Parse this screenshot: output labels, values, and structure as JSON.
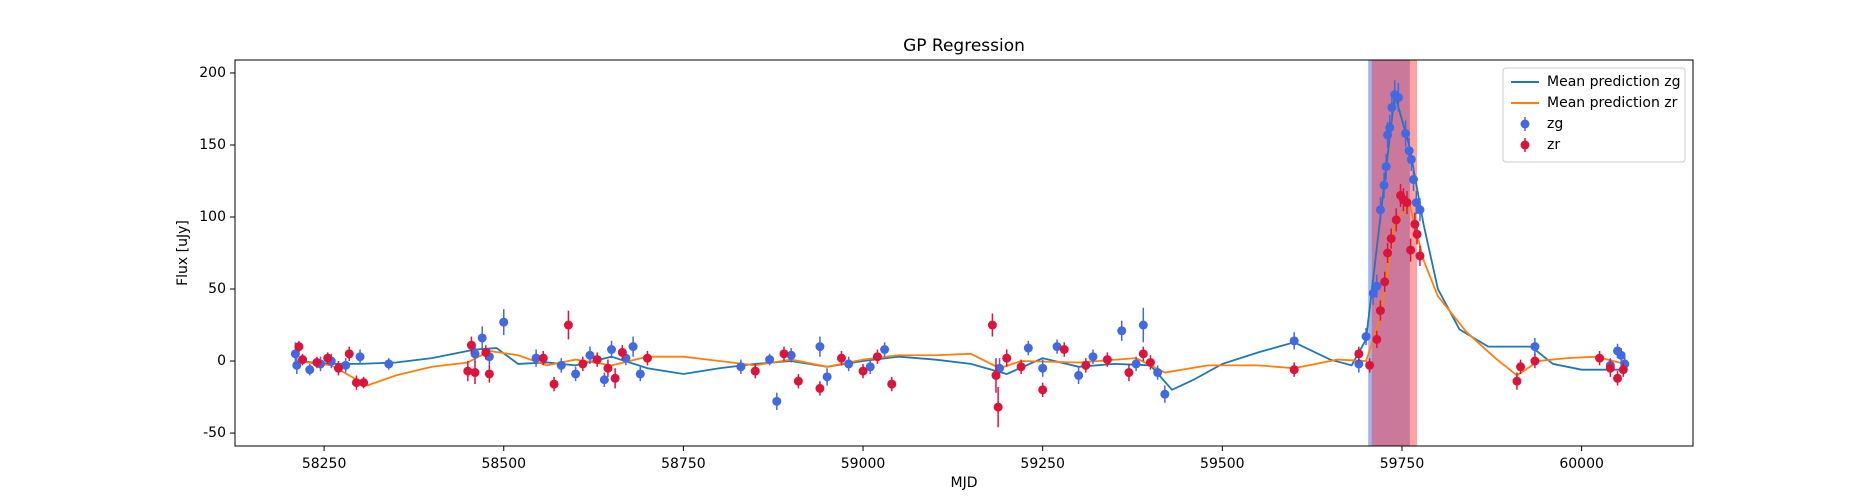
{
  "chart_data": {
    "type": "errorbar",
    "title": "GP Regression",
    "x_label": "MJD",
    "y_label": "Flux [uJy]",
    "xlim": [
      58126,
      60155
    ],
    "ylim": [
      -59,
      209
    ],
    "xticks": [
      58250,
      58500,
      58750,
      59000,
      59250,
      59500,
      59750,
      60000
    ],
    "yticks": [
      -50,
      0,
      50,
      100,
      150,
      200
    ],
    "legend": "upper right",
    "spans": [
      {
        "range": [
          59703,
          59761
        ],
        "color": "#4169e1",
        "alpha": 0.5
      },
      {
        "range": [
          59708,
          59771
        ],
        "color": "#ff3030",
        "alpha": 0.45
      }
    ],
    "series": [
      {
        "name": "Mean prediction zg",
        "kind": "line",
        "color": "#1f77b4",
        "x": [
          58210,
          58260,
          58300,
          58350,
          58400,
          58460,
          58490,
          58520,
          58560,
          58600,
          58650,
          58700,
          58750,
          58800,
          58850,
          58900,
          58950,
          59000,
          59050,
          59100,
          59150,
          59200,
          59250,
          59300,
          59350,
          59400,
          59430,
          59460,
          59500,
          59550,
          59600,
          59650,
          59680,
          59700,
          59720,
          59740,
          59760,
          59780,
          59800,
          59830,
          59870,
          59900,
          59930,
          59960,
          60000,
          60060
        ],
        "values": [
          0,
          -2,
          -2,
          -1,
          2,
          8,
          9,
          -2,
          -1,
          -3,
          3,
          -5,
          -9,
          -5,
          -2,
          0,
          -4,
          0,
          3,
          1,
          -2,
          -9,
          2,
          -4,
          -2,
          -3,
          -20,
          -13,
          -2,
          6,
          13,
          1,
          -3,
          15,
          100,
          185,
          150,
          95,
          50,
          22,
          10,
          10,
          10,
          -2,
          -6,
          -6
        ]
      },
      {
        "name": "Mean prediction zr",
        "kind": "line",
        "color": "#ff7f0e",
        "x": [
          58210,
          58260,
          58310,
          58350,
          58400,
          58450,
          58480,
          58520,
          58560,
          58600,
          58650,
          58700,
          58750,
          58800,
          58850,
          58900,
          58950,
          59000,
          59050,
          59100,
          59150,
          59190,
          59220,
          59300,
          59380,
          59420,
          59480,
          59550,
          59600,
          59660,
          59700,
          59720,
          59740,
          59760,
          59780,
          59800,
          59840,
          59880,
          59910,
          59940,
          59980,
          60020,
          60060
        ],
        "values": [
          0,
          -3,
          -17,
          -10,
          -4,
          -1,
          7,
          4,
          -3,
          1,
          -3,
          3,
          3,
          0,
          -3,
          1,
          -4,
          1,
          4,
          4,
          5,
          -5,
          0,
          -1,
          2,
          -8,
          -3,
          -3,
          -5,
          1,
          0,
          30,
          95,
          110,
          70,
          45,
          20,
          2,
          -10,
          0,
          2,
          3,
          -2
        ]
      },
      {
        "name": "zg",
        "kind": "errorbar",
        "color": "#4169e1",
        "x": [
          58210,
          58212,
          58230,
          58245,
          58260,
          58280,
          58300,
          58340,
          58460,
          58470,
          58480,
          58500,
          58545,
          58580,
          58600,
          58620,
          58640,
          58650,
          58670,
          58680,
          58690,
          58830,
          58870,
          58880,
          58900,
          58940,
          58950,
          58980,
          59010,
          59030,
          59190,
          59230,
          59250,
          59270,
          59300,
          59320,
          59360,
          59380,
          59390,
          59410,
          59420,
          59600,
          59690,
          59700,
          59710,
          59715,
          59720,
          59725,
          59728,
          59730,
          59733,
          59736,
          59740,
          59745,
          59755,
          59760,
          59763,
          59766,
          59770,
          59775,
          59935,
          60040,
          60050,
          60055,
          60060
        ],
        "values": [
          5,
          -3,
          -6,
          -2,
          0,
          -3,
          3,
          -2,
          5,
          16,
          3,
          27,
          2,
          -3,
          -9,
          4,
          -13,
          8,
          2,
          10,
          -9,
          -4,
          1,
          -28,
          4,
          10,
          -11,
          -2,
          -4,
          8,
          -5,
          9,
          -5,
          10,
          -10,
          3,
          21,
          -2,
          25,
          -8,
          -23,
          14,
          -2,
          17,
          47,
          52,
          105,
          122,
          135,
          157,
          162,
          176,
          185,
          183,
          158,
          146,
          140,
          126,
          110,
          105,
          10,
          -3,
          7,
          4,
          -2
        ],
        "errors": [
          8,
          6,
          4,
          5,
          5,
          5,
          5,
          4,
          6,
          8,
          6,
          9,
          6,
          5,
          5,
          6,
          5,
          6,
          5,
          7,
          5,
          5,
          4,
          6,
          5,
          7,
          6,
          5,
          5,
          5,
          7,
          5,
          6,
          5,
          6,
          5,
          7,
          5,
          12,
          5,
          6,
          6,
          6,
          6,
          8,
          8,
          9,
          9,
          9,
          9,
          9,
          10,
          10,
          10,
          9,
          9,
          8,
          8,
          8,
          8,
          6,
          5,
          5,
          5,
          5
        ]
      },
      {
        "name": "zr",
        "kind": "errorbar",
        "color": "#dc143c",
        "x": [
          58215,
          58220,
          58240,
          58255,
          58270,
          58285,
          58295,
          58305,
          58450,
          58455,
          58460,
          58475,
          58480,
          58555,
          58570,
          58590,
          58610,
          58630,
          58645,
          58655,
          58665,
          58700,
          58850,
          58890,
          58910,
          58940,
          58970,
          59000,
          59020,
          59040,
          59180,
          59185,
          59188,
          59200,
          59220,
          59250,
          59280,
          59310,
          59340,
          59370,
          59390,
          59400,
          59600,
          59690,
          59705,
          59715,
          59720,
          59726,
          59730,
          59735,
          59742,
          59748,
          59752,
          59757,
          59762,
          59768,
          59771,
          59775,
          59910,
          59915,
          59935,
          60025,
          60040,
          60050,
          60058
        ],
        "values": [
          10,
          1,
          -1,
          2,
          -5,
          5,
          -15,
          -15,
          -7,
          11,
          -8,
          6,
          -9,
          2,
          -16,
          25,
          -2,
          1,
          -5,
          -12,
          6,
          2,
          -7,
          5,
          -14,
          -19,
          2,
          -7,
          3,
          -16,
          25,
          -10,
          -32,
          2,
          -4,
          -20,
          8,
          -3,
          1,
          -8,
          5,
          -1,
          -6,
          5,
          -3,
          15,
          35,
          55,
          75,
          85,
          98,
          115,
          112,
          110,
          77,
          95,
          88,
          73,
          -14,
          -4,
          0,
          2,
          -5,
          -12,
          -6
        ],
        "errors": [
          4,
          4,
          4,
          4,
          5,
          5,
          5,
          4,
          7,
          6,
          8,
          5,
          6,
          5,
          5,
          10,
          5,
          5,
          6,
          7,
          5,
          5,
          5,
          5,
          5,
          5,
          5,
          5,
          5,
          5,
          8,
          12,
          14,
          6,
          5,
          5,
          5,
          5,
          5,
          6,
          5,
          5,
          5,
          5,
          5,
          6,
          7,
          7,
          7,
          7,
          8,
          8,
          8,
          8,
          8,
          8,
          7,
          7,
          6,
          5,
          5,
          5,
          6,
          5,
          5
        ]
      }
    ]
  }
}
